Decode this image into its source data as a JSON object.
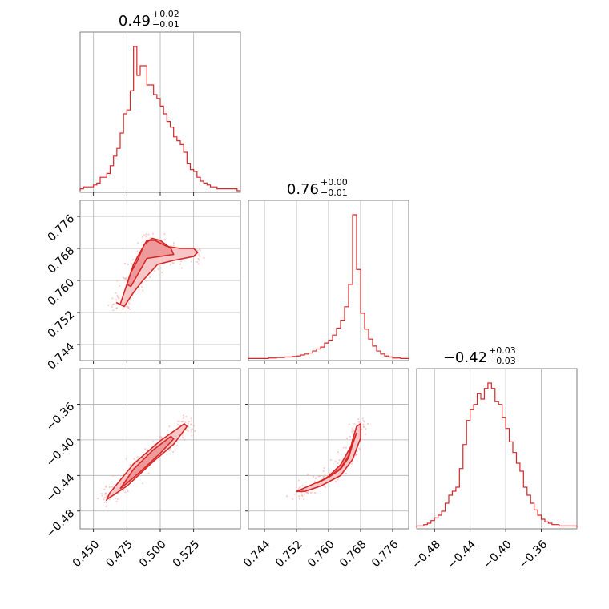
{
  "chart_data": {
    "type": "corner",
    "colors": {
      "line": "#d62728",
      "fill_outer": "#f7c7c7",
      "fill_inner": "#ef9a9a",
      "scatter": "#f4a6a6"
    },
    "grid": true,
    "parameters": [
      {
        "title_value": "0.49",
        "title_plus": "+0.02",
        "title_minus": "−0.01",
        "range": [
          0.44,
          0.56
        ],
        "ticks": [
          "0.450",
          "0.475",
          "0.500",
          "0.525"
        ],
        "tick_values": [
          0.45,
          0.475,
          0.5,
          0.525
        ]
      },
      {
        "title_value": "0.76",
        "title_plus": "+0.00",
        "title_minus": "−0.01",
        "range": [
          0.74,
          0.78
        ],
        "ticks": [
          "0.744",
          "0.752",
          "0.760",
          "0.768",
          "0.776"
        ],
        "tick_values": [
          0.744,
          0.752,
          0.76,
          0.768,
          0.776
        ]
      },
      {
        "title_value": "−0.42",
        "title_plus": "+0.03",
        "title_minus": "−0.03",
        "range": [
          -0.5,
          -0.32
        ],
        "ticks": [
          "−0.48",
          "−0.44",
          "−0.40",
          "−0.36"
        ],
        "tick_values": [
          -0.48,
          -0.44,
          -0.4,
          -0.36
        ]
      }
    ],
    "histograms": [
      {
        "param": 0,
        "bin_start": 0.44,
        "bin_width": 0.0025,
        "counts": [
          1,
          2,
          2,
          2,
          3,
          4,
          7,
          7,
          9,
          13,
          18,
          22,
          30,
          40,
          42,
          52,
          75,
          60,
          65,
          65,
          55,
          55,
          50,
          48,
          44,
          40,
          36,
          33,
          28,
          26,
          24,
          20,
          14,
          11,
          10,
          7,
          5,
          4,
          3,
          2,
          2,
          1,
          1,
          1,
          1,
          1,
          1,
          0
        ]
      },
      {
        "param": 1,
        "bin_start": 0.74,
        "bin_width": 0.001,
        "counts": [
          1,
          1,
          1,
          1,
          1,
          2,
          2,
          3,
          3,
          4,
          4,
          5,
          6,
          8,
          10,
          12,
          16,
          20,
          24,
          32,
          38,
          48,
          62,
          78,
          105,
          150,
          290,
          180,
          92,
          60,
          40,
          26,
          16,
          10,
          6,
          4,
          2,
          2,
          1,
          1
        ]
      },
      {
        "param": 2,
        "bin_start": -0.5,
        "bin_width": 0.004,
        "counts": [
          1,
          1,
          2,
          3,
          5,
          7,
          9,
          12,
          18,
          24,
          27,
          30,
          44,
          62,
          80,
          88,
          92,
          100,
          96,
          104,
          108,
          104,
          94,
          92,
          82,
          74,
          64,
          56,
          48,
          42,
          30,
          24,
          18,
          13,
          9,
          6,
          4,
          3,
          2,
          2,
          1,
          1,
          1,
          1,
          1
        ]
      }
    ],
    "pairs": [
      {
        "x_param": 0,
        "y_param": 1,
        "correlation": "curved, saturating at y≈0.768",
        "contours": [
          {
            "level": "outer",
            "x": [
              0.467,
              0.47,
              0.472,
              0.476,
              0.48,
              0.484,
              0.49,
              0.496,
              0.505,
              0.515,
              0.525,
              0.528,
              0.525,
              0.51,
              0.498,
              0.487,
              0.48,
              0.473,
              0.467
            ],
            "y": [
              0.7545,
              0.754,
              0.756,
              0.76,
              0.764,
              0.7665,
              0.77,
              0.77,
              0.7685,
              0.768,
              0.768,
              0.767,
              0.766,
              0.765,
              0.764,
              0.76,
              0.757,
              0.7535,
              0.7545
            ]
          },
          {
            "level": "inner",
            "x": [
              0.475,
              0.478,
              0.483,
              0.488,
              0.494,
              0.5,
              0.508,
              0.51,
              0.5,
              0.49,
              0.484,
              0.478,
              0.475
            ],
            "y": [
              0.759,
              0.762,
              0.765,
              0.769,
              0.7705,
              0.77,
              0.768,
              0.7665,
              0.766,
              0.7655,
              0.762,
              0.7585,
              0.759
            ]
          }
        ]
      },
      {
        "x_param": 0,
        "y_param": 2,
        "correlation": "linear, positive",
        "contours": [
          {
            "level": "outer",
            "x": [
              0.46,
              0.475,
              0.495,
              0.51,
              0.52,
              0.518,
              0.5,
              0.48,
              0.462,
              0.46
            ],
            "y": [
              -0.467,
              -0.452,
              -0.424,
              -0.405,
              -0.385,
              -0.382,
              -0.401,
              -0.427,
              -0.46,
              -0.467
            ]
          },
          {
            "level": "inner",
            "x": [
              0.47,
              0.485,
              0.5,
              0.51,
              0.508,
              0.495,
              0.48,
              0.47
            ],
            "y": [
              -0.455,
              -0.436,
              -0.415,
              -0.399,
              -0.396,
              -0.411,
              -0.433,
              -0.455
            ]
          }
        ]
      },
      {
        "x_param": 1,
        "y_param": 2,
        "correlation": "curved, increasing steeply near x≈0.767",
        "contours": [
          {
            "level": "outer",
            "x": [
              0.752,
              0.756,
              0.76,
              0.763,
              0.765,
              0.766,
              0.767,
              0.768,
              0.768,
              0.766,
              0.763,
              0.758,
              0.754,
              0.752
            ],
            "y": [
              -0.458,
              -0.45,
              -0.442,
              -0.432,
              -0.418,
              -0.4,
              -0.385,
              -0.382,
              -0.398,
              -0.422,
              -0.44,
              -0.452,
              -0.458,
              -0.458
            ]
          },
          {
            "level": "inner",
            "x": [
              0.757,
              0.76,
              0.763,
              0.765,
              0.766,
              0.767,
              0.766,
              0.763,
              0.76,
              0.757
            ],
            "y": [
              -0.449,
              -0.442,
              -0.433,
              -0.42,
              -0.405,
              -0.392,
              -0.404,
              -0.428,
              -0.441,
              -0.449
            ]
          }
        ]
      }
    ]
  }
}
